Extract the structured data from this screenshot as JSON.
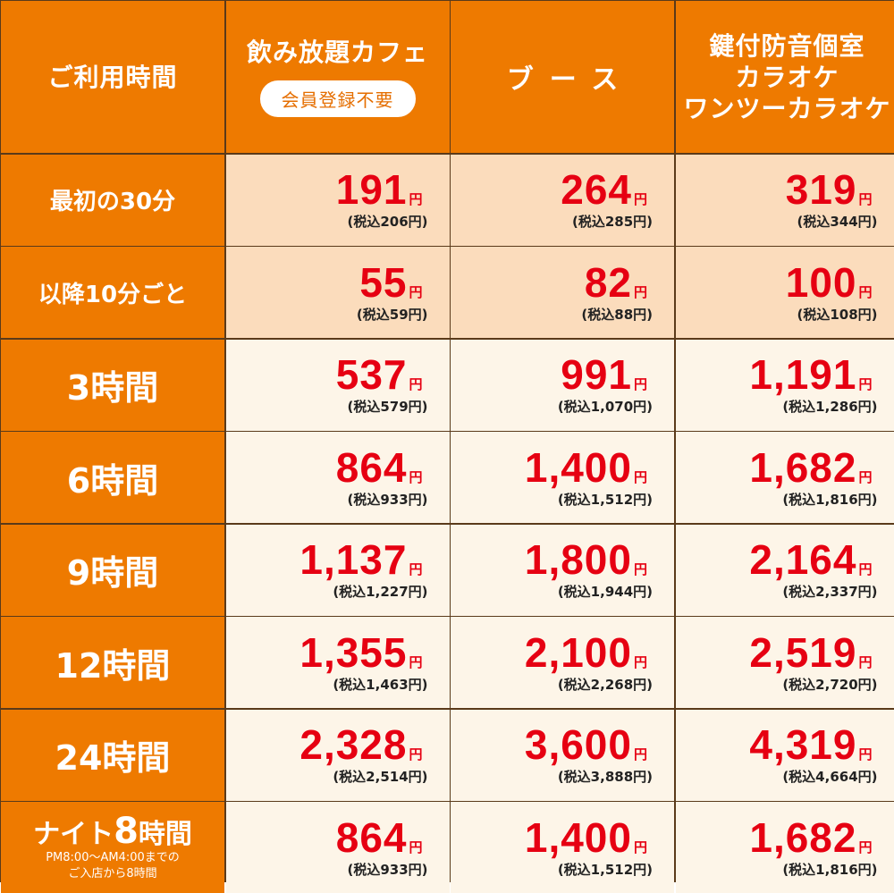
{
  "header": {
    "time_label": "ご利用時間",
    "cafe_title": "飲み放題カフェ",
    "cafe_badge": "会員登録不要",
    "booth_title": "ブース",
    "karaoke_line1": "鍵付防音個室",
    "karaoke_line2": "カラオケ",
    "karaoke_line3": "ワンツーカラオケ"
  },
  "yen": "円",
  "rows": [
    {
      "label": "最初の30分",
      "cafe": {
        "price": "191",
        "tax": "(税込206円)"
      },
      "booth": {
        "price": "264",
        "tax": "(税込285円)"
      },
      "karaoke": {
        "price": "319",
        "tax": "(税込344円)"
      }
    },
    {
      "label": "以降10分ごと",
      "cafe": {
        "price": "55",
        "tax": "(税込59円)"
      },
      "booth": {
        "price": "82",
        "tax": "(税込88円)"
      },
      "karaoke": {
        "price": "100",
        "tax": "(税込108円)"
      }
    },
    {
      "label": "3時間",
      "cafe": {
        "price": "537",
        "tax": "(税込579円)"
      },
      "booth": {
        "price": "991",
        "tax": "(税込1,070円)"
      },
      "karaoke": {
        "price": "1,191",
        "tax": "(税込1,286円)"
      }
    },
    {
      "label": "6時間",
      "cafe": {
        "price": "864",
        "tax": "(税込933円)"
      },
      "booth": {
        "price": "1,400",
        "tax": "(税込1,512円)"
      },
      "karaoke": {
        "price": "1,682",
        "tax": "(税込1,816円)"
      }
    },
    {
      "label": "9時間",
      "cafe": {
        "price": "1,137",
        "tax": "(税込1,227円)"
      },
      "booth": {
        "price": "1,800",
        "tax": "(税込1,944円)"
      },
      "karaoke": {
        "price": "2,164",
        "tax": "(税込2,337円)"
      }
    },
    {
      "label": "12時間",
      "cafe": {
        "price": "1,355",
        "tax": "(税込1,463円)"
      },
      "booth": {
        "price": "2,100",
        "tax": "(税込2,268円)"
      },
      "karaoke": {
        "price": "2,519",
        "tax": "(税込2,720円)"
      }
    },
    {
      "label": "24時間",
      "cafe": {
        "price": "2,328",
        "tax": "(税込2,514円)"
      },
      "booth": {
        "price": "3,600",
        "tax": "(税込3,888円)"
      },
      "karaoke": {
        "price": "4,319",
        "tax": "(税込4,664円)"
      }
    },
    {
      "label_prefix": "ナイト",
      "label_num": "8",
      "label_suffix": "時間",
      "label_sub1": "PM8:00～AM4:00までの",
      "label_sub2": "ご入店から8時間",
      "cafe": {
        "price": "864",
        "tax": "(税込933円)"
      },
      "booth": {
        "price": "1,400",
        "tax": "(税込1,512円)"
      },
      "karaoke": {
        "price": "1,682",
        "tax": "(税込1,816円)"
      }
    }
  ],
  "colors": {
    "header_orange": "#ee7a00",
    "peach_row": "#fbdcbc",
    "cream_row": "#fdf5e8",
    "price_red": "#e60012",
    "border_brown": "#5a3a1a"
  }
}
